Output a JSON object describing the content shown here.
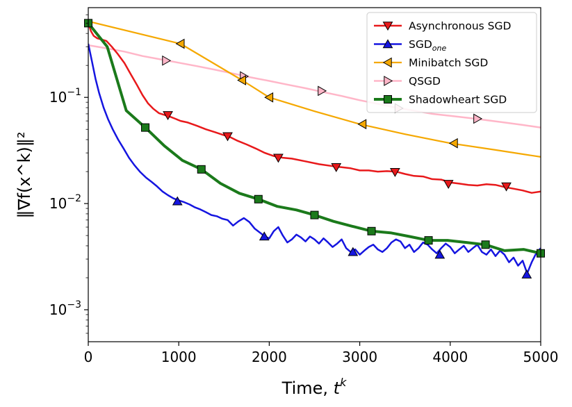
{
  "chart_data": {
    "type": "line",
    "xlabel_main": "Time, ",
    "xlabel_sup": "k",
    "xlabel_var": "t",
    "ylabel": "‖∇f(x^k)‖²",
    "xlim": [
      0,
      5000
    ],
    "ylim": [
      0.0005,
      0.7
    ],
    "yscale": "log",
    "x_ticks": [
      0,
      1000,
      2000,
      3000,
      4000,
      5000
    ],
    "x_tick_labels": [
      "0",
      "1000",
      "2000",
      "3000",
      "4000",
      "5000"
    ],
    "y_ticks": [
      {
        "value": 0.1,
        "base": "10",
        "exp": "−1"
      },
      {
        "value": 0.01,
        "base": "10",
        "exp": "−2"
      },
      {
        "value": 0.001,
        "base": "10",
        "exp": "−3"
      }
    ],
    "legend_position": "top-right",
    "series": [
      {
        "name": "Asynchronous SGD",
        "color": "#e8191b",
        "marker": "triangle-down",
        "line_width": 2.5,
        "x": [
          0,
          30,
          60,
          100,
          150,
          200,
          260,
          320,
          400,
          470,
          540,
          600,
          660,
          720,
          780,
          850,
          900,
          960,
          1020,
          1100,
          1200,
          1300,
          1400,
          1500,
          1550,
          1650,
          1750,
          1850,
          1950,
          2050,
          2150,
          2250,
          2400,
          2550,
          2700,
          2800,
          2900,
          3000,
          3100,
          3200,
          3300,
          3400,
          3500,
          3600,
          3700,
          3800,
          3900,
          4000,
          4100,
          4200,
          4300,
          4400,
          4500,
          4600,
          4700,
          4800,
          4900,
          5000
        ],
        "y": [
          0.5,
          0.42,
          0.38,
          0.36,
          0.35,
          0.34,
          0.3,
          0.26,
          0.21,
          0.165,
          0.13,
          0.105,
          0.088,
          0.078,
          0.071,
          0.068,
          0.066,
          0.063,
          0.06,
          0.058,
          0.054,
          0.05,
          0.047,
          0.044,
          0.043,
          0.039,
          0.036,
          0.033,
          0.03,
          0.028,
          0.027,
          0.0265,
          0.025,
          0.0235,
          0.0225,
          0.022,
          0.0215,
          0.0205,
          0.0205,
          0.02,
          0.0202,
          0.02,
          0.019,
          0.0182,
          0.018,
          0.017,
          0.0168,
          0.0158,
          0.0154,
          0.015,
          0.0148,
          0.0152,
          0.015,
          0.0143,
          0.0138,
          0.0133,
          0.0126,
          0.013
        ],
        "marker_x": [
          880,
          1540,
          2100,
          2740,
          3390,
          3980,
          4620
        ],
        "marker_y": [
          0.068,
          0.043,
          0.027,
          0.022,
          0.0198,
          0.0153,
          0.0145
        ]
      },
      {
        "name": "SGD",
        "name_sub": "one",
        "color": "#1515e0",
        "marker": "triangle-up",
        "line_width": 2.5,
        "x": [
          0,
          40,
          80,
          120,
          170,
          220,
          270,
          330,
          390,
          450,
          510,
          570,
          640,
          700,
          760,
          820,
          880,
          940,
          1000,
          1060,
          1120,
          1180,
          1240,
          1300,
          1360,
          1420,
          1480,
          1540,
          1600,
          1660,
          1720,
          1780,
          1840,
          1900,
          1950,
          2000,
          2050,
          2100,
          2150,
          2200,
          2250,
          2300,
          2350,
          2400,
          2450,
          2500,
          2550,
          2600,
          2650,
          2700,
          2750,
          2800,
          2850,
          2900,
          2950,
          3000,
          3050,
          3100,
          3150,
          3200,
          3250,
          3300,
          3350,
          3400,
          3450,
          3500,
          3550,
          3600,
          3650,
          3700,
          3750,
          3800,
          3850,
          3900,
          3950,
          4000,
          4050,
          4100,
          4150,
          4200,
          4250,
          4300,
          4350,
          4400,
          4450,
          4500,
          4550,
          4600,
          4650,
          4700,
          4750,
          4800,
          4850,
          4900,
          4950,
          5000
        ],
        "y": [
          0.32,
          0.22,
          0.15,
          0.11,
          0.08,
          0.062,
          0.05,
          0.04,
          0.033,
          0.027,
          0.023,
          0.02,
          0.0175,
          0.016,
          0.0145,
          0.013,
          0.012,
          0.0112,
          0.0107,
          0.0103,
          0.0098,
          0.0092,
          0.0088,
          0.0083,
          0.0078,
          0.0076,
          0.0072,
          0.007,
          0.0062,
          0.0068,
          0.0073,
          0.0067,
          0.0058,
          0.0053,
          0.0049,
          0.0047,
          0.0055,
          0.006,
          0.005,
          0.0043,
          0.0046,
          0.0051,
          0.0048,
          0.0044,
          0.0049,
          0.0046,
          0.0042,
          0.0047,
          0.0043,
          0.0039,
          0.0042,
          0.0046,
          0.0038,
          0.0035,
          0.0037,
          0.0033,
          0.0036,
          0.0039,
          0.0041,
          0.0037,
          0.0035,
          0.0038,
          0.0043,
          0.0046,
          0.0044,
          0.0038,
          0.0041,
          0.0035,
          0.0038,
          0.0043,
          0.0041,
          0.0037,
          0.0034,
          0.0038,
          0.0042,
          0.0039,
          0.0034,
          0.0037,
          0.004,
          0.0035,
          0.0038,
          0.0041,
          0.0035,
          0.0033,
          0.0037,
          0.0032,
          0.0036,
          0.0033,
          0.0028,
          0.0031,
          0.0026,
          0.0029,
          0.0022,
          0.0028,
          0.0034,
          0.0038
        ],
        "marker_x": [
          985,
          1945,
          2925,
          3885,
          4845
        ],
        "marker_y": [
          0.0105,
          0.0049,
          0.0035,
          0.0033,
          0.00215
        ]
      },
      {
        "name": "Minibatch SGD",
        "color": "#f5a800",
        "marker": "triangle-left",
        "line_width": 2.2,
        "x": [
          0,
          1020,
          1700,
          2000,
          2500,
          3000,
          3500,
          4000,
          4500,
          5000
        ],
        "y": [
          0.52,
          0.32,
          0.145,
          0.1,
          0.074,
          0.056,
          0.045,
          0.037,
          0.032,
          0.0275
        ],
        "marker_x": [
          1020,
          1700,
          2000,
          3030,
          4040
        ],
        "marker_y": [
          0.32,
          0.145,
          0.1,
          0.056,
          0.037
        ]
      },
      {
        "name": "QSGD",
        "color": "#ffb6c8",
        "marker": "triangle-right",
        "line_width": 2.5,
        "x": [
          0,
          200,
          400,
          600,
          800,
          1000,
          1200,
          1400,
          1600,
          1800,
          2000,
          2200,
          2400,
          2600,
          2800,
          3000,
          3200,
          3400,
          3600,
          3800,
          4000,
          4200,
          4400,
          4600,
          4800,
          5000
        ],
        "y": [
          0.31,
          0.29,
          0.27,
          0.245,
          0.228,
          0.212,
          0.197,
          0.182,
          0.168,
          0.154,
          0.143,
          0.132,
          0.122,
          0.112,
          0.103,
          0.094,
          0.087,
          0.08,
          0.075,
          0.07,
          0.067,
          0.064,
          0.061,
          0.058,
          0.055,
          0.052
        ],
        "marker_x": [
          860,
          1720,
          2580,
          3430,
          4300
        ],
        "marker_y": [
          0.222,
          0.158,
          0.115,
          0.079,
          0.063
        ]
      },
      {
        "name": "Shadowheart SGD",
        "color": "#1b7a1b",
        "marker": "square",
        "line_width": 4,
        "x": [
          0,
          210,
          420,
          630,
          840,
          1040,
          1250,
          1460,
          1670,
          1880,
          2090,
          2300,
          2500,
          2710,
          2920,
          3130,
          3340,
          3550,
          3760,
          3970,
          4180,
          4390,
          4600,
          4810,
          5000
        ],
        "y": [
          0.5,
          0.3,
          0.075,
          0.052,
          0.035,
          0.0255,
          0.021,
          0.0155,
          0.0125,
          0.011,
          0.0094,
          0.0087,
          0.0078,
          0.0068,
          0.0061,
          0.0055,
          0.0053,
          0.0049,
          0.0045,
          0.0045,
          0.0043,
          0.0041,
          0.0036,
          0.0037,
          0.0034
        ],
        "marker_x": [
          0,
          630,
          1250,
          1880,
          2500,
          3130,
          3760,
          4390,
          5000
        ],
        "marker_y": [
          0.5,
          0.052,
          0.021,
          0.011,
          0.0078,
          0.0055,
          0.0045,
          0.0041,
          0.0034
        ]
      }
    ]
  }
}
